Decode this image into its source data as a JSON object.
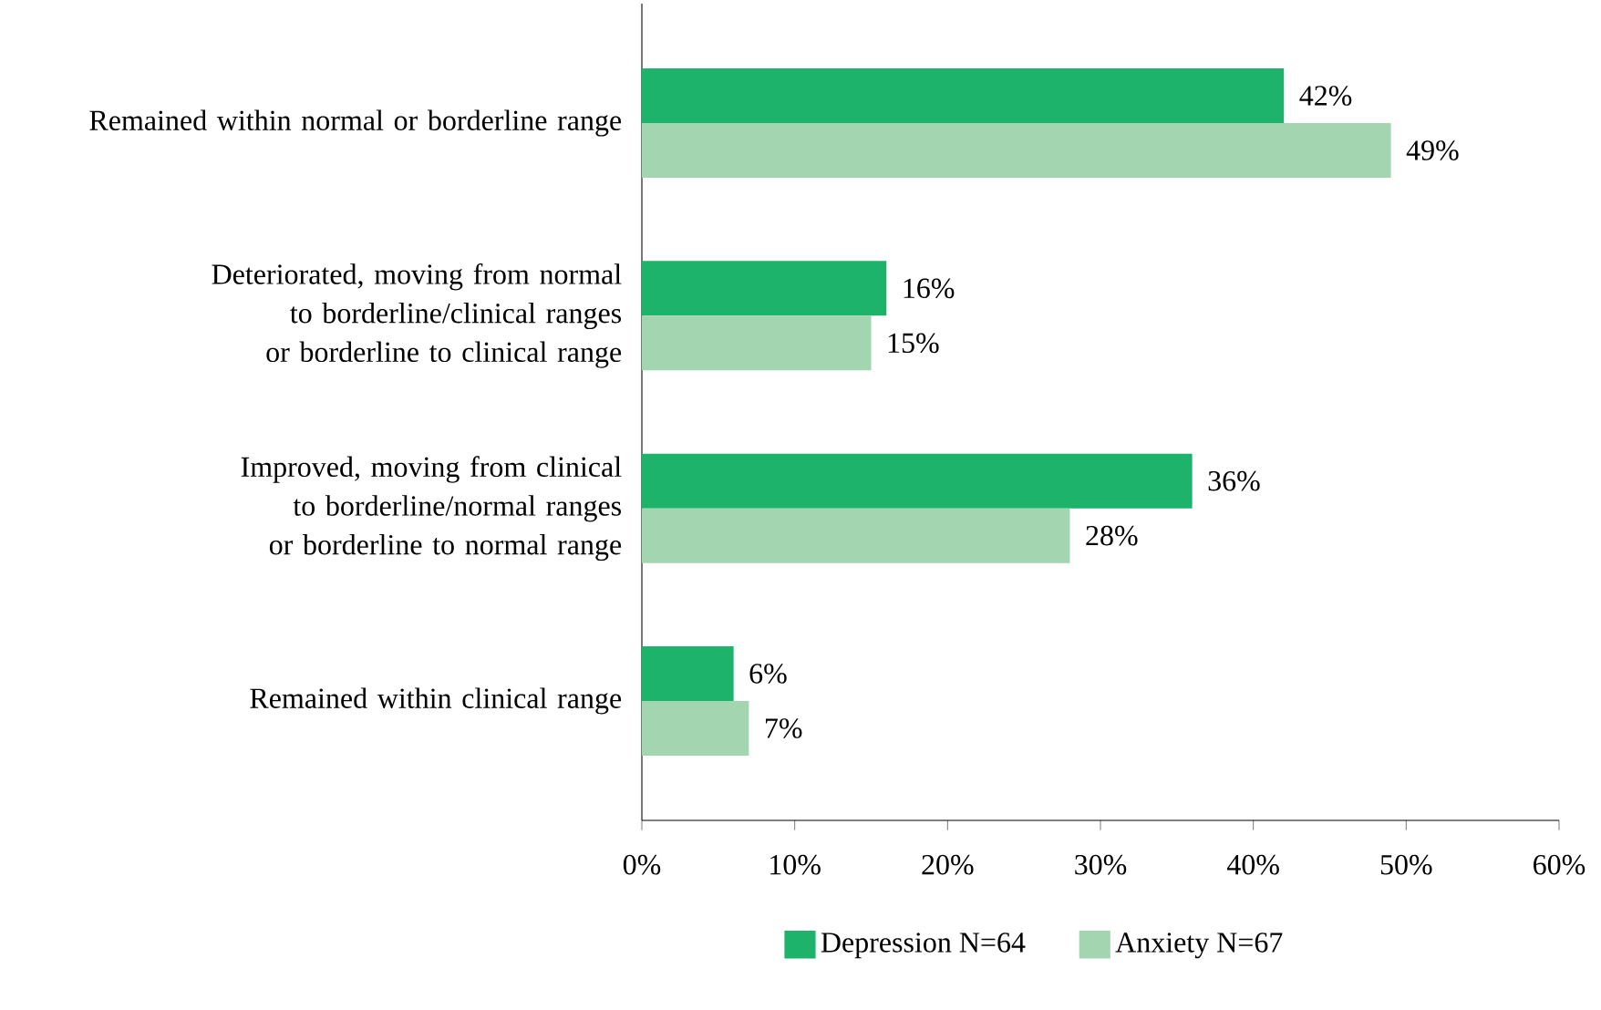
{
  "chart_data": {
    "type": "bar",
    "orientation": "horizontal",
    "categories": [
      "Remained within normal or borderline range",
      "Deteriorated, moving from normal to borderline/clinical ranges or borderline to clinical range",
      "Improved, moving from clinical to borderline/normal ranges or borderline to normal range",
      "Remained within clinical range"
    ],
    "series": [
      {
        "name": "Depression N=64",
        "color": "#1db36b",
        "values": [
          42,
          16,
          36,
          6
        ],
        "value_labels": [
          "42%",
          "16%",
          "36%",
          "6%"
        ]
      },
      {
        "name": "Anxiety N=67",
        "color": "#a3d6b0",
        "values": [
          49,
          15,
          28,
          7
        ],
        "value_labels": [
          "49%",
          "15%",
          "28%",
          "7%"
        ]
      }
    ],
    "xlim": [
      0,
      60
    ],
    "xticks": [
      {
        "value": 0,
        "label": "0%"
      },
      {
        "value": 10,
        "label": "10%"
      },
      {
        "value": 20,
        "label": "20%"
      },
      {
        "value": 30,
        "label": "30%"
      },
      {
        "value": 40,
        "label": "40%"
      },
      {
        "value": 50,
        "label": "50%"
      },
      {
        "value": 60,
        "label": "60%"
      }
    ],
    "grid": false,
    "legend": "bottom"
  }
}
